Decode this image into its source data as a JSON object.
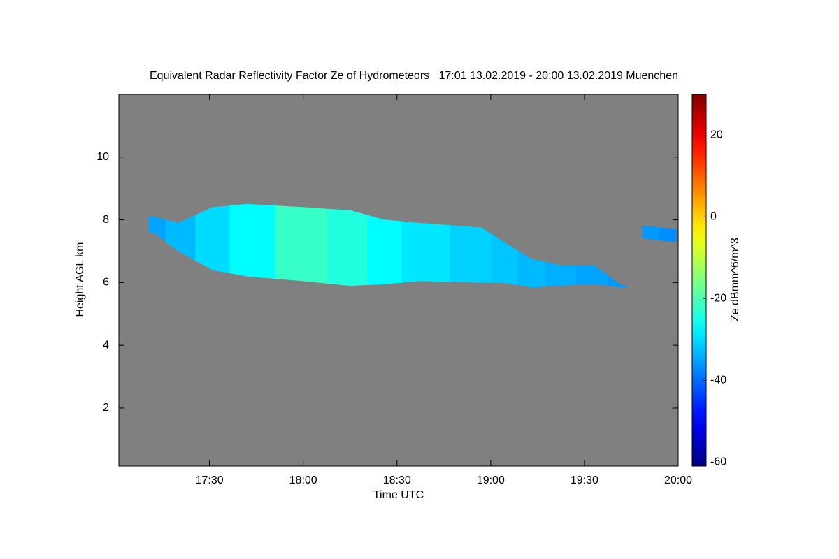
{
  "chart_data": {
    "type": "heatmap",
    "title": "Equivalent Radar Reflectivity Factor Ze of Hydrometeors   17:01 13.02.2019 - 20:00 13.02.2019 Muenchen",
    "xlabel": "Time UTC",
    "ylabel": "Height AGL km",
    "colorbar_label": "Ze dBmm^6/m^3",
    "colormap": "jet",
    "background": "#808080",
    "x": [
      "17:12",
      "17:20",
      "17:31",
      "17:42",
      "18:00",
      "18:15",
      "18:26",
      "18:37",
      "18:57",
      "19:04",
      "19:13",
      "19:22",
      "19:33",
      "19:42",
      "19:46",
      "19:50",
      "19:58"
    ],
    "cloud_top": [
      8.1,
      7.9,
      8.4,
      8.5,
      8.4,
      8.3,
      8.0,
      7.9,
      7.75,
      7.3,
      6.75,
      6.55,
      6.55,
      5.9,
      null,
      7.8,
      7.7
    ],
    "cloud_base": [
      7.6,
      7.0,
      6.4,
      6.2,
      6.05,
      5.9,
      5.95,
      6.05,
      6.0,
      6.0,
      5.85,
      5.9,
      5.95,
      5.85,
      null,
      7.4,
      7.3
    ],
    "ze": [
      -35,
      -33,
      -30,
      -27,
      -22,
      -24,
      -27,
      -29,
      -31,
      -32,
      -33,
      -34,
      -35,
      -36,
      null,
      -36,
      -37
    ],
    "xlim": [
      "17:01",
      "20:00"
    ],
    "xticks": [
      "17:30",
      "18:00",
      "18:30",
      "19:00",
      "19:30",
      "20:00"
    ],
    "ylim": [
      0.15,
      12
    ],
    "yticks": [
      2,
      4,
      6,
      8,
      10
    ],
    "zlim": [
      -61,
      30
    ],
    "zticks": [
      -60,
      -40,
      -20,
      0,
      20
    ]
  }
}
